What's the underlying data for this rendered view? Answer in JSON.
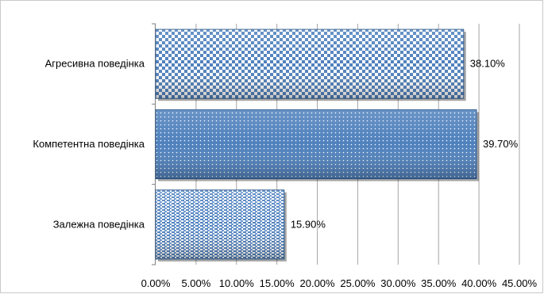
{
  "chart_data": {
    "type": "bar",
    "orientation": "horizontal",
    "categories": [
      "Агресивна поведінка",
      "Компетентна поведінка",
      "Залежна поведінка"
    ],
    "values": [
      38.1,
      39.7,
      15.9
    ],
    "data_labels": [
      "38.10%",
      "39.70%",
      "15.90%"
    ],
    "xlim": [
      0,
      45
    ],
    "xticks": [
      "0.00%",
      "5.00%",
      "10.00%",
      "15.00%",
      "20.00%",
      "25.00%",
      "30.00%",
      "35.00%",
      "40.00%",
      "45.00%"
    ],
    "grid": "vertical",
    "legend": "none",
    "colors": {
      "bar_fill": "#4f81bd",
      "bar_dark": "#2e5b8f",
      "bar_light": "#ffffff",
      "gridline": "#a6a6a6",
      "axis": "#808080"
    },
    "patterns": [
      "checkerboard",
      "dotted",
      "horizontal-dashes"
    ]
  }
}
